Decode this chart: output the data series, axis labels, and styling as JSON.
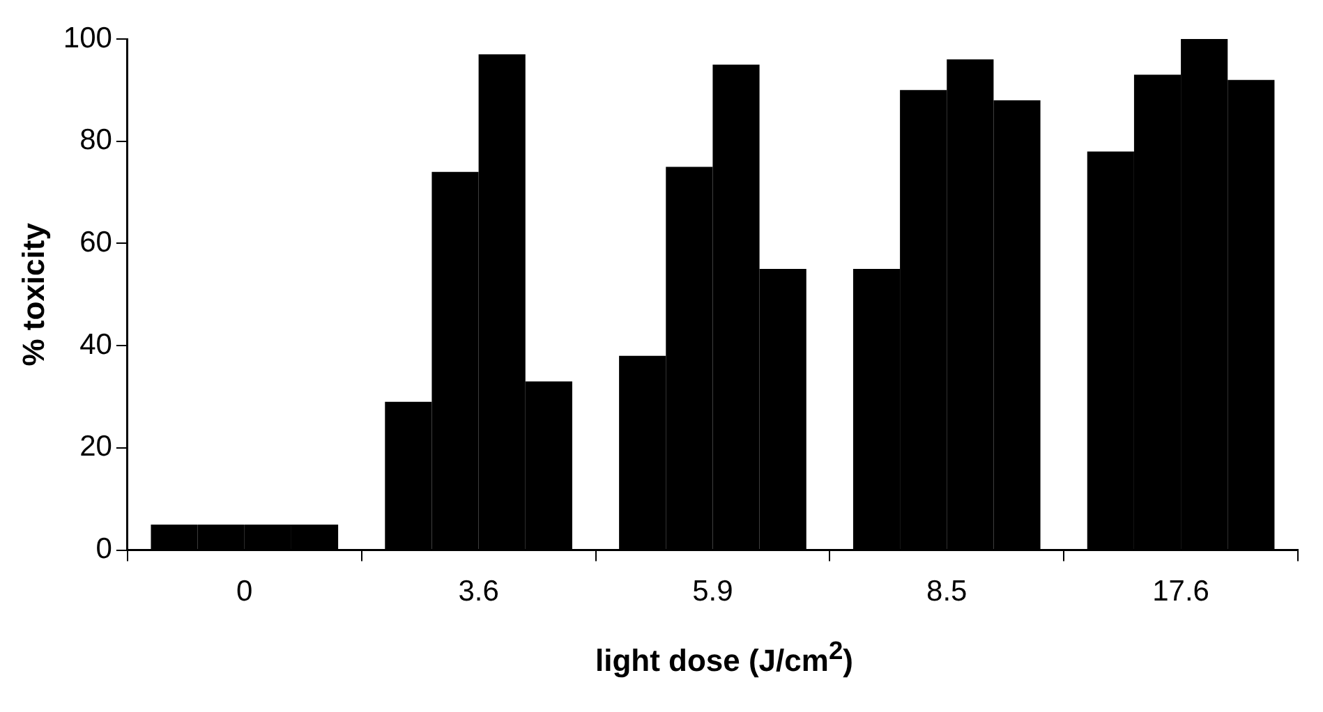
{
  "chart_data": {
    "type": "bar",
    "xlabel": "light dose (J/cm$^{2}$)",
    "ylabel": "% toxicity",
    "categories": [
      "0",
      "3.6",
      "5.9",
      "8.5",
      "17.6"
    ],
    "series": [
      {
        "color": "#000000",
        "values": [
          5,
          29,
          38,
          55,
          78
        ]
      },
      {
        "color": "#000000",
        "values": [
          5,
          74,
          75,
          90,
          93
        ]
      },
      {
        "color": "#000000",
        "values": [
          5,
          97,
          95,
          96,
          100
        ]
      },
      {
        "color": "#000000",
        "values": [
          5,
          33,
          55,
          88,
          92
        ]
      }
    ],
    "ylim": [
      0,
      100
    ],
    "yticks": [
      0,
      20,
      40,
      60,
      80,
      100
    ],
    "grid": false,
    "legend": false
  }
}
